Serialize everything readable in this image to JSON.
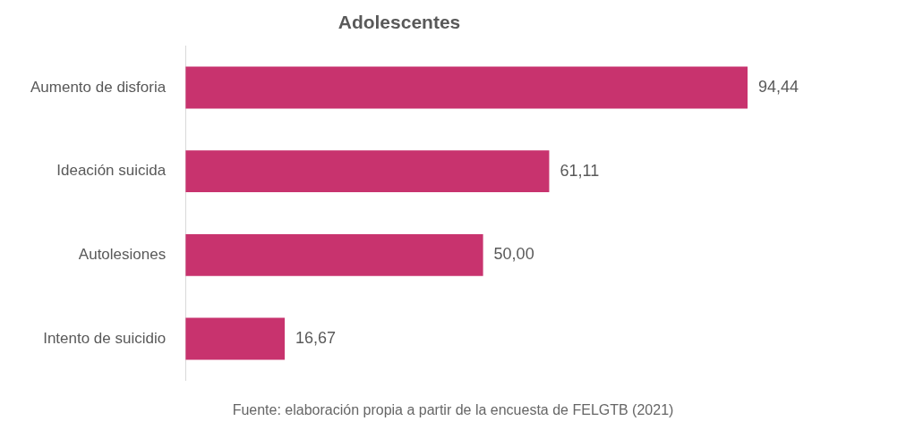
{
  "chart_data": {
    "type": "bar",
    "orientation": "horizontal",
    "title": "Adolescentes",
    "categories": [
      "Aumento de disforia",
      "Ideación suicida",
      "Autolesiones",
      "Intento de suicidio"
    ],
    "values": [
      94.44,
      61.11,
      50.0,
      16.67
    ],
    "color": "#c8336e",
    "value_labels": [
      "94,44",
      "61,11",
      "50,00",
      "16,67"
    ],
    "legend": false,
    "annotations": [
      "Fuente: elaboración propia a partir de la encuesta de FELGTB (2021)"
    ]
  }
}
